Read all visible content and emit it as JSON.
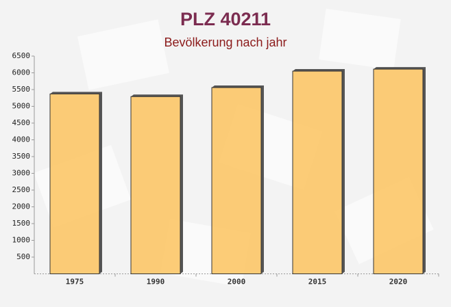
{
  "chart_data": {
    "type": "bar",
    "title": "PLZ 40211",
    "subtitle": "Bevölkerung nach jahr",
    "categories": [
      "1975",
      "1990",
      "2000",
      "2015",
      "2020"
    ],
    "values": [
      5370,
      5290,
      5560,
      6050,
      6110
    ],
    "color": "#fbc35f",
    "ylim": [
      0,
      6500
    ],
    "yticks": [
      500,
      1000,
      1500,
      2000,
      2500,
      3000,
      3500,
      4000,
      4500,
      5000,
      5500,
      6000,
      6500
    ],
    "grid": false
  }
}
